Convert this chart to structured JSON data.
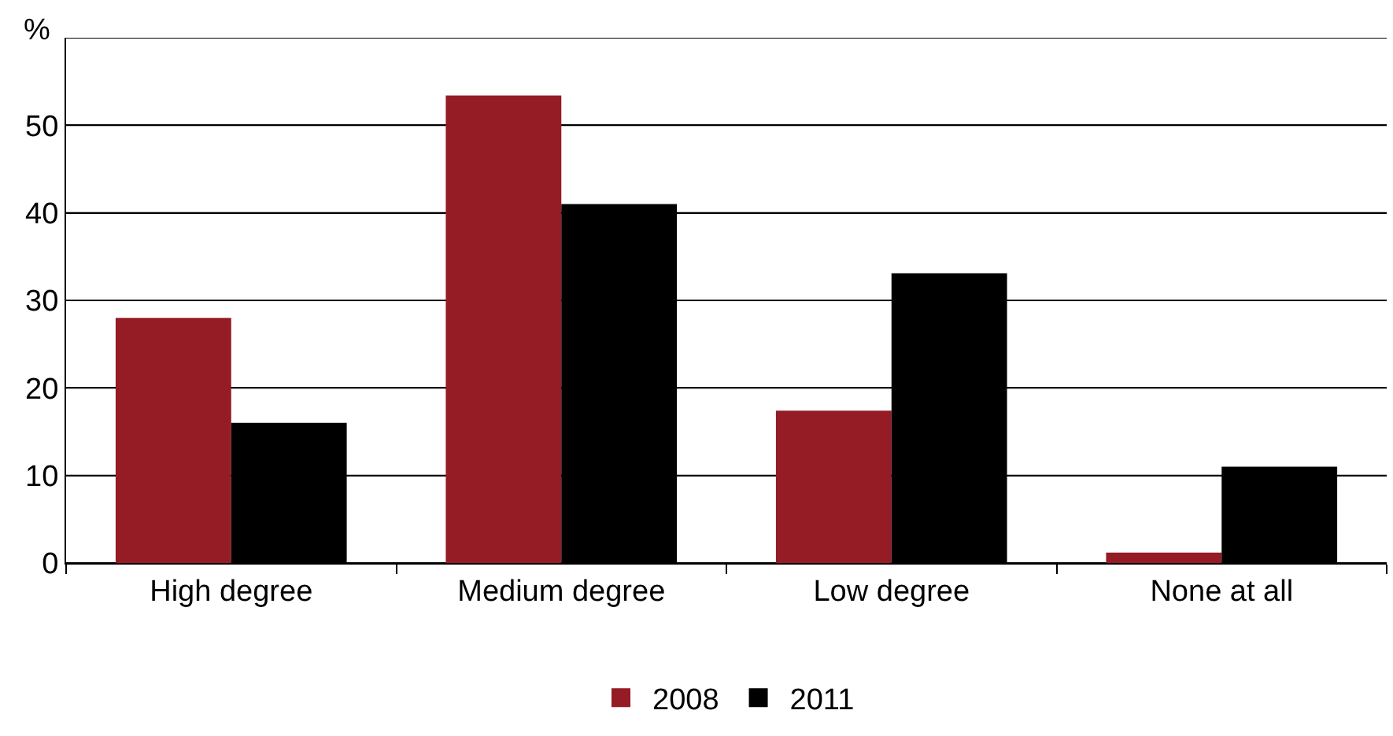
{
  "chart_data": {
    "type": "bar",
    "ylabel": "%",
    "categories": [
      "High degree",
      "Medium degree",
      "Low degree",
      "None at all"
    ],
    "series": [
      {
        "name": "2008",
        "color": "#951b24",
        "values": [
          28,
          53.4,
          17.4,
          1.2
        ]
      },
      {
        "name": "2011",
        "color": "#000000",
        "values": [
          16,
          41,
          33.1,
          11
        ]
      }
    ],
    "ylim": [
      0,
      60
    ],
    "yticks": [
      0,
      10,
      20,
      30,
      40,
      50,
      {
        "value": 60,
        "label": null
      }
    ],
    "grid": "y",
    "legend": "bottom"
  }
}
